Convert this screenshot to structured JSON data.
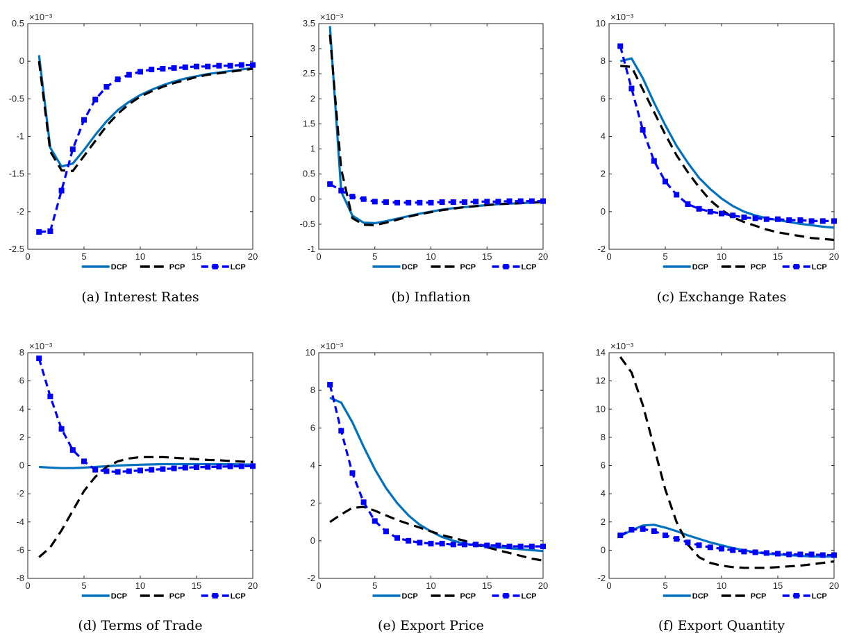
{
  "figure": {
    "colors": {
      "DCP": "#0072bd",
      "PCP": "#000000",
      "LCP": "#0000ff"
    }
  },
  "chart_data": [
    {
      "type": "line",
      "caption": "(a) Interest Rates",
      "scale_label": "×10⁻³",
      "xlim": [
        0,
        20
      ],
      "ylim": [
        -2.5,
        0.5
      ],
      "xticks": [
        "0",
        "5",
        "10",
        "15",
        "20"
      ],
      "yticks": [
        "-2.5",
        "-2",
        "-1.5",
        "-1",
        "-0.5",
        "0",
        "0.5"
      ],
      "x": [
        1,
        2,
        3,
        4,
        5,
        6,
        7,
        8,
        9,
        10,
        11,
        12,
        13,
        14,
        15,
        16,
        17,
        18,
        19,
        20
      ],
      "series": [
        {
          "name": "DCP",
          "values": [
            0.08,
            -1.15,
            -1.4,
            -1.36,
            -1.18,
            -0.98,
            -0.8,
            -0.65,
            -0.54,
            -0.45,
            -0.38,
            -0.32,
            -0.27,
            -0.23,
            -0.2,
            -0.17,
            -0.15,
            -0.13,
            -0.11,
            -0.09
          ]
        },
        {
          "name": "PCP",
          "values": [
            0.0,
            -1.2,
            -1.45,
            -1.46,
            -1.26,
            -1.06,
            -0.86,
            -0.7,
            -0.57,
            -0.47,
            -0.4,
            -0.34,
            -0.29,
            -0.25,
            -0.21,
            -0.18,
            -0.16,
            -0.14,
            -0.12,
            -0.1
          ]
        },
        {
          "name": "LCP",
          "values": [
            -2.27,
            -2.26,
            -1.72,
            -1.17,
            -0.78,
            -0.51,
            -0.34,
            -0.24,
            -0.18,
            -0.14,
            -0.11,
            -0.1,
            -0.09,
            -0.08,
            -0.07,
            -0.07,
            -0.06,
            -0.06,
            -0.05,
            -0.05
          ]
        }
      ],
      "legend": [
        "DCP",
        "PCP",
        "LCP"
      ]
    },
    {
      "type": "line",
      "caption": "(b) Inflation",
      "scale_label": "×10⁻³",
      "xlim": [
        0,
        20
      ],
      "ylim": [
        -1,
        3.5
      ],
      "xticks": [
        "0",
        "5",
        "10",
        "15",
        "20"
      ],
      "yticks": [
        "-1",
        "-0.5",
        "0",
        "0.5",
        "1",
        "1.5",
        "2",
        "2.5",
        "3",
        "3.5"
      ],
      "x": [
        1,
        2,
        3,
        4,
        5,
        6,
        7,
        8,
        9,
        10,
        11,
        12,
        13,
        14,
        15,
        16,
        17,
        18,
        19,
        20
      ],
      "series": [
        {
          "name": "DCP",
          "values": [
            3.45,
            0.15,
            -0.33,
            -0.47,
            -0.48,
            -0.44,
            -0.39,
            -0.34,
            -0.29,
            -0.25,
            -0.21,
            -0.18,
            -0.16,
            -0.14,
            -0.12,
            -0.1,
            -0.09,
            -0.08,
            -0.07,
            -0.06
          ]
        },
        {
          "name": "PCP",
          "values": [
            3.28,
            0.6,
            -0.38,
            -0.51,
            -0.52,
            -0.47,
            -0.41,
            -0.35,
            -0.3,
            -0.26,
            -0.22,
            -0.19,
            -0.16,
            -0.14,
            -0.12,
            -0.1,
            -0.09,
            -0.08,
            -0.07,
            -0.06
          ]
        },
        {
          "name": "LCP",
          "values": [
            0.3,
            0.17,
            0.05,
            0.0,
            -0.05,
            -0.06,
            -0.07,
            -0.07,
            -0.07,
            -0.07,
            -0.06,
            -0.06,
            -0.06,
            -0.05,
            -0.05,
            -0.05,
            -0.04,
            -0.04,
            -0.04,
            -0.04
          ]
        }
      ],
      "legend": [
        "DCP",
        "PCP",
        "LCP"
      ]
    },
    {
      "type": "line",
      "caption": "(c) Exchange Rates",
      "scale_label": "×10⁻³",
      "xlim": [
        0,
        20
      ],
      "ylim": [
        -2,
        10
      ],
      "xticks": [
        "0",
        "5",
        "10",
        "15",
        "20"
      ],
      "yticks": [
        "-2",
        "0",
        "2",
        "4",
        "6",
        "8",
        "10"
      ],
      "x": [
        1,
        2,
        3,
        4,
        5,
        6,
        7,
        8,
        9,
        10,
        11,
        12,
        13,
        14,
        15,
        16,
        17,
        18,
        19,
        20
      ],
      "series": [
        {
          "name": "DCP",
          "values": [
            8.0,
            8.15,
            7.1,
            5.8,
            4.6,
            3.5,
            2.6,
            1.8,
            1.2,
            0.7,
            0.3,
            0.0,
            -0.2,
            -0.35,
            -0.45,
            -0.55,
            -0.65,
            -0.72,
            -0.8,
            -0.85
          ]
        },
        {
          "name": "PCP",
          "values": [
            7.75,
            7.7,
            6.5,
            5.3,
            4.1,
            3.0,
            2.1,
            1.3,
            0.6,
            0.1,
            -0.3,
            -0.55,
            -0.75,
            -0.95,
            -1.1,
            -1.2,
            -1.3,
            -1.4,
            -1.45,
            -1.5
          ]
        },
        {
          "name": "LCP",
          "values": [
            8.8,
            6.55,
            4.35,
            2.7,
            1.6,
            0.9,
            0.4,
            0.15,
            0.0,
            -0.1,
            -0.2,
            -0.3,
            -0.35,
            -0.4,
            -0.4,
            -0.45,
            -0.45,
            -0.5,
            -0.5,
            -0.5
          ]
        }
      ],
      "legend": [
        "DCP",
        "PCP",
        "LCP"
      ]
    },
    {
      "type": "line",
      "caption": "(d) Terms of Trade",
      "scale_label": "×10⁻³",
      "xlim": [
        0,
        20
      ],
      "ylim": [
        -8,
        8
      ],
      "xticks": [
        "0",
        "5",
        "10",
        "15",
        "20"
      ],
      "yticks": [
        "-8",
        "-6",
        "-4",
        "-2",
        "0",
        "2",
        "4",
        "6",
        "8"
      ],
      "x": [
        1,
        2,
        3,
        4,
        5,
        6,
        7,
        8,
        9,
        10,
        11,
        12,
        13,
        14,
        15,
        16,
        17,
        18,
        19,
        20
      ],
      "series": [
        {
          "name": "DCP",
          "values": [
            -0.1,
            -0.15,
            -0.18,
            -0.18,
            -0.15,
            -0.1,
            -0.05,
            0.0,
            0.03,
            0.06,
            0.08,
            0.1,
            0.1,
            0.1,
            0.1,
            0.1,
            0.1,
            0.1,
            0.08,
            0.07
          ]
        },
        {
          "name": "PCP",
          "values": [
            -6.5,
            -5.8,
            -4.6,
            -3.2,
            -1.8,
            -0.8,
            -0.1,
            0.3,
            0.5,
            0.6,
            0.6,
            0.6,
            0.55,
            0.5,
            0.45,
            0.4,
            0.38,
            0.32,
            0.28,
            0.25
          ]
        },
        {
          "name": "LCP",
          "values": [
            7.6,
            4.9,
            2.6,
            1.1,
            0.3,
            -0.3,
            -0.4,
            -0.45,
            -0.4,
            -0.35,
            -0.3,
            -0.25,
            -0.2,
            -0.15,
            -0.12,
            -0.1,
            -0.08,
            -0.06,
            -0.05,
            -0.04
          ]
        }
      ],
      "legend": [
        "DCP",
        "PCP",
        "LCP"
      ]
    },
    {
      "type": "line",
      "caption": "(e) Export Price",
      "scale_label": "×10⁻³",
      "xlim": [
        0,
        20
      ],
      "ylim": [
        -2,
        10
      ],
      "xticks": [
        "0",
        "5",
        "10",
        "15",
        "20"
      ],
      "yticks": [
        "-2",
        "0",
        "2",
        "4",
        "6",
        "8",
        "10"
      ],
      "x": [
        1,
        2,
        3,
        4,
        5,
        6,
        7,
        8,
        9,
        10,
        11,
        12,
        13,
        14,
        15,
        16,
        17,
        18,
        19,
        20
      ],
      "series": [
        {
          "name": "DCP",
          "values": [
            7.6,
            7.35,
            6.3,
            5.0,
            3.8,
            2.8,
            2.0,
            1.35,
            0.85,
            0.5,
            0.2,
            0.0,
            -0.15,
            -0.25,
            -0.3,
            -0.35,
            -0.4,
            -0.45,
            -0.5,
            -0.55
          ]
        },
        {
          "name": "PCP",
          "values": [
            1.0,
            1.4,
            1.75,
            1.8,
            1.6,
            1.35,
            1.1,
            0.9,
            0.7,
            0.5,
            0.3,
            0.15,
            0.0,
            -0.2,
            -0.35,
            -0.5,
            -0.65,
            -0.8,
            -0.95,
            -1.05
          ]
        },
        {
          "name": "LCP",
          "values": [
            8.3,
            5.85,
            3.6,
            2.05,
            1.05,
            0.5,
            0.15,
            0.0,
            -0.1,
            -0.15,
            -0.15,
            -0.2,
            -0.2,
            -0.2,
            -0.25,
            -0.25,
            -0.3,
            -0.3,
            -0.3,
            -0.3
          ]
        }
      ],
      "legend": [
        "DCP",
        "PCP",
        "LCP"
      ]
    },
    {
      "type": "line",
      "caption": "(f) Export Quantity",
      "scale_label": "×10⁻³",
      "xlim": [
        0,
        20
      ],
      "ylim": [
        -2,
        14
      ],
      "xticks": [
        "0",
        "5",
        "10",
        "15",
        "20"
      ],
      "yticks": [
        "-2",
        "0",
        "2",
        "4",
        "6",
        "8",
        "10",
        "12",
        "14"
      ],
      "x": [
        1,
        2,
        3,
        4,
        5,
        6,
        7,
        8,
        9,
        10,
        11,
        12,
        13,
        14,
        15,
        16,
        17,
        18,
        19,
        20
      ],
      "series": [
        {
          "name": "DCP",
          "values": [
            1.0,
            1.4,
            1.75,
            1.8,
            1.6,
            1.35,
            1.05,
            0.8,
            0.55,
            0.35,
            0.15,
            0.0,
            -0.15,
            -0.25,
            -0.3,
            -0.35,
            -0.4,
            -0.45,
            -0.45,
            -0.45
          ]
        },
        {
          "name": "PCP",
          "values": [
            13.7,
            12.6,
            10.3,
            7.3,
            4.3,
            2.0,
            0.4,
            -0.5,
            -0.9,
            -1.1,
            -1.2,
            -1.25,
            -1.25,
            -1.25,
            -1.2,
            -1.15,
            -1.1,
            -1.0,
            -0.9,
            -0.8
          ]
        },
        {
          "name": "LCP",
          "values": [
            1.05,
            1.45,
            1.5,
            1.35,
            1.05,
            0.8,
            0.55,
            0.35,
            0.2,
            0.1,
            0.0,
            -0.1,
            -0.15,
            -0.2,
            -0.25,
            -0.3,
            -0.3,
            -0.3,
            -0.35,
            -0.35
          ]
        }
      ],
      "legend": [
        "DCP",
        "PCP",
        "LCP"
      ]
    }
  ]
}
